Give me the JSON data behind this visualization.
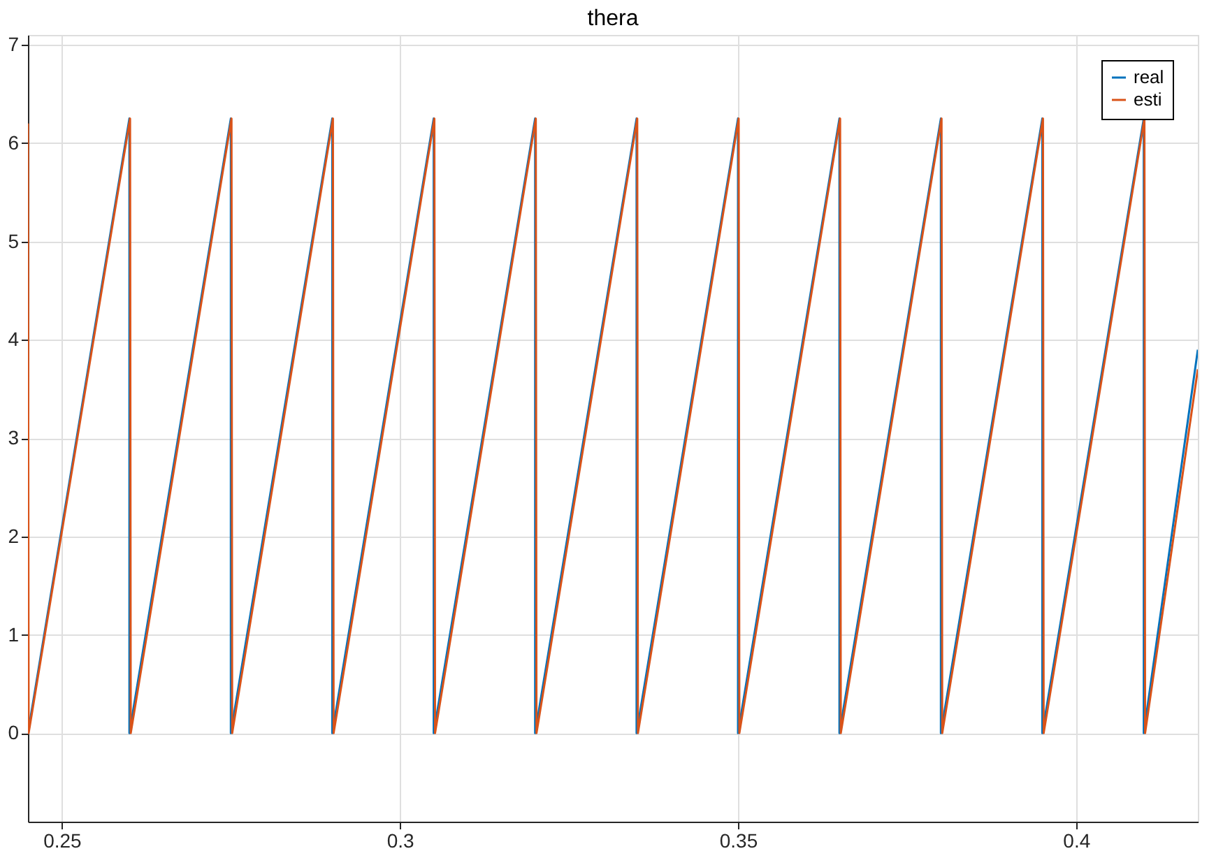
{
  "chart_data": {
    "type": "line",
    "title": "thera",
    "xlim": [
      0.245,
      0.418
    ],
    "xticks": [
      0.25,
      0.3,
      0.35,
      0.4
    ],
    "ylim": [
      -0.9,
      7.1
    ],
    "yticks": [
      0,
      1,
      2,
      3,
      4,
      5,
      6,
      7
    ],
    "grid": true,
    "legend": "top right",
    "marker": "none",
    "line_style": "solid",
    "series": [
      {
        "name": "real",
        "color": "#0072bd",
        "x": [
          0.245,
          0.26,
          0.26,
          0.275,
          0.275,
          0.29,
          0.29,
          0.305,
          0.305,
          0.32,
          0.32,
          0.335,
          0.335,
          0.35,
          0.35,
          0.365,
          0.365,
          0.38,
          0.38,
          0.395,
          0.395,
          0.41,
          0.41,
          0.418
        ],
        "values": [
          0,
          6.25,
          0,
          6.25,
          0,
          6.25,
          0,
          6.25,
          0,
          6.25,
          0,
          6.25,
          0,
          6.25,
          0,
          6.25,
          0,
          6.25,
          0,
          6.25,
          0,
          6.25,
          0,
          3.9
        ]
      },
      {
        "name": "esti",
        "color": "#d95319",
        "x": [
          0.245,
          0.2451,
          0.2601,
          0.2602,
          0.2751,
          0.2752,
          0.2901,
          0.2902,
          0.3051,
          0.3052,
          0.3201,
          0.3202,
          0.3351,
          0.3352,
          0.3501,
          0.3502,
          0.3651,
          0.3652,
          0.3801,
          0.3802,
          0.3951,
          0.3952,
          0.4101,
          0.4102,
          0.418
        ],
        "values": [
          6.2,
          0,
          6.25,
          0,
          6.25,
          0,
          6.25,
          0,
          6.25,
          0,
          6.25,
          0,
          6.25,
          0,
          6.25,
          0,
          6.25,
          0,
          6.25,
          0,
          6.25,
          0,
          6.25,
          0,
          3.7
        ]
      }
    ]
  }
}
